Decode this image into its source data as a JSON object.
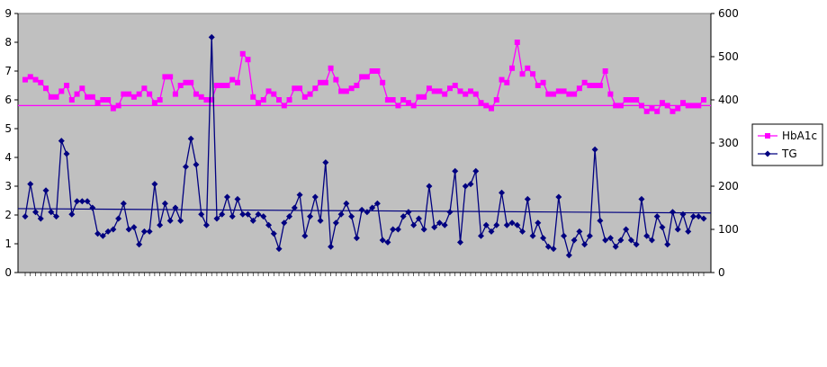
{
  "chart_data": {
    "type": "line",
    "title": "",
    "xlabel": "",
    "ylabel": "",
    "y2label": "",
    "grid": false,
    "legend_position": "right",
    "x_labels_illegible": true,
    "y_left": {
      "min": 0,
      "max": 9,
      "ticks": [
        "0",
        "1",
        "2",
        "3",
        "4",
        "5",
        "6",
        "7",
        "8",
        "9"
      ]
    },
    "y_right": {
      "min": 0,
      "max": 600,
      "ticks": [
        "0",
        "100",
        "200",
        "300",
        "400",
        "500",
        "600"
      ]
    },
    "series": [
      {
        "name": "HbA1c",
        "axis": "left",
        "color": "#ff00ff",
        "marker": "square",
        "values": [
          6.7,
          6.8,
          6.7,
          6.6,
          6.4,
          6.1,
          6.1,
          6.3,
          6.5,
          6.0,
          6.2,
          6.4,
          6.1,
          6.1,
          5.9,
          6.0,
          6.0,
          5.7,
          5.8,
          6.2,
          6.2,
          6.1,
          6.2,
          6.4,
          6.2,
          5.9,
          6.0,
          6.8,
          6.8,
          6.2,
          6.5,
          6.6,
          6.6,
          6.2,
          6.1,
          6.0,
          6.0,
          6.5,
          6.5,
          6.5,
          6.7,
          6.6,
          7.6,
          7.4,
          6.1,
          5.9,
          6.0,
          6.3,
          6.2,
          6.0,
          5.8,
          6.0,
          6.4,
          6.4,
          6.1,
          6.2,
          6.4,
          6.6,
          6.6,
          7.1,
          6.7,
          6.3,
          6.3,
          6.4,
          6.5,
          6.8,
          6.8,
          7.0,
          7.0,
          6.6,
          6.0,
          6.0,
          5.8,
          6.0,
          5.9,
          5.8,
          6.1,
          6.1,
          6.4,
          6.3,
          6.3,
          6.2,
          6.4,
          6.5,
          6.3,
          6.2,
          6.3,
          6.2,
          5.9,
          5.8,
          5.7,
          6.0,
          6.7,
          6.6,
          7.1,
          8.0,
          6.9,
          7.1,
          6.9,
          6.5,
          6.6,
          6.2,
          6.2,
          6.3,
          6.3,
          6.2,
          6.2,
          6.4,
          6.6,
          6.5,
          6.5,
          6.5,
          7.0,
          6.2,
          5.8,
          5.8,
          6.0,
          6.0,
          6.0,
          5.8,
          5.6,
          5.7,
          5.6,
          5.9,
          5.8,
          5.6,
          5.7,
          5.9,
          5.8,
          5.8,
          5.8,
          6.0
        ]
      },
      {
        "name": "TG",
        "axis": "right",
        "color": "#000080",
        "marker": "diamond",
        "values": [
          130,
          205,
          140,
          125,
          190,
          140,
          130,
          305,
          275,
          135,
          165,
          165,
          165,
          150,
          90,
          85,
          95,
          100,
          125,
          160,
          100,
          105,
          65,
          95,
          95,
          205,
          110,
          160,
          120,
          150,
          120,
          245,
          310,
          250,
          135,
          110,
          545,
          125,
          135,
          175,
          130,
          170,
          135,
          135,
          120,
          135,
          130,
          110,
          90,
          55,
          115,
          130,
          150,
          180,
          85,
          130,
          175,
          120,
          255,
          60,
          115,
          135,
          160,
          130,
          80,
          145,
          140,
          150,
          160,
          75,
          70,
          100,
          100,
          130,
          140,
          110,
          125,
          100,
          200,
          105,
          115,
          110,
          140,
          235,
          70,
          200,
          205,
          235,
          85,
          110,
          95,
          110,
          185,
          110,
          115,
          110,
          95,
          170,
          85,
          115,
          80,
          60,
          55,
          175,
          85,
          40,
          75,
          95,
          65,
          85,
          285,
          120,
          75,
          80,
          60,
          75,
          100,
          75,
          65,
          170,
          85,
          75,
          130,
          105,
          65,
          140,
          100,
          135,
          95,
          130,
          130,
          125
        ]
      },
      {
        "name": "HbA1c-reference",
        "axis": "left",
        "color": "#ff00ff",
        "type": "hline",
        "value": 5.8
      },
      {
        "name": "TG-trend",
        "axis": "right",
        "color": "#000080",
        "type": "trendline",
        "start": 148,
        "end": 138
      }
    ]
  }
}
